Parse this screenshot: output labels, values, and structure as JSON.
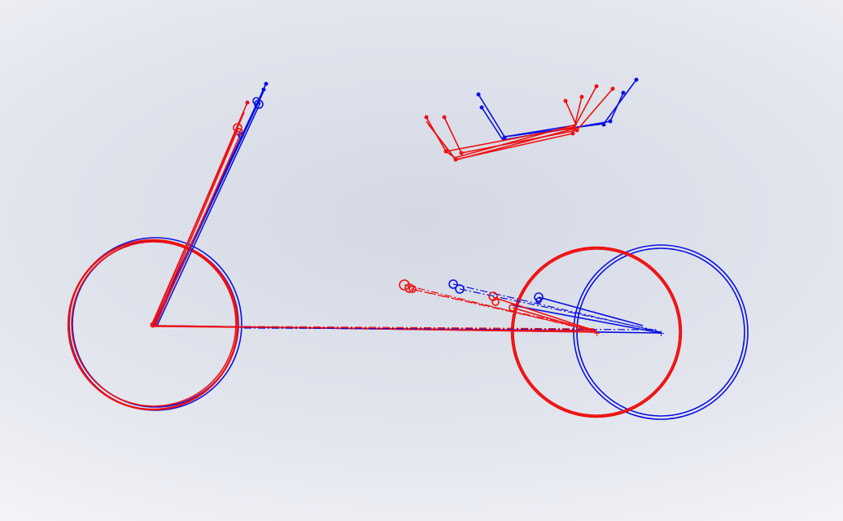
{
  "colors": {
    "background_center": "#d3d8e4",
    "background_edge": "#ffffff",
    "configuration_a": "#0a10e0",
    "configuration_b": "#ee1010"
  },
  "sketch_groups": [
    {
      "id": "front-wheel"
    },
    {
      "id": "steering-arms"
    },
    {
      "id": "seat-linkage"
    },
    {
      "id": "rear-wheel"
    },
    {
      "id": "frame-construction-lines"
    },
    {
      "id": "pivot-markers"
    }
  ]
}
